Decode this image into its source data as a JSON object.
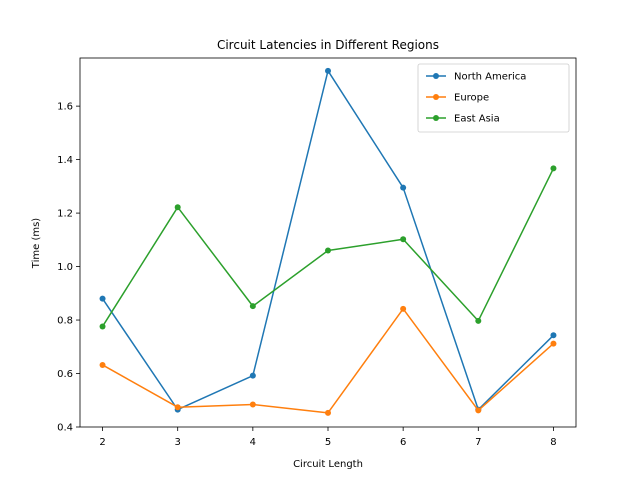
{
  "chart_data": {
    "type": "line",
    "title": "Circuit Latencies in Different Regions",
    "xlabel": "Circuit Length",
    "ylabel": "Time (ms)",
    "x": [
      2,
      3,
      4,
      5,
      6,
      7,
      8
    ],
    "xlim": [
      1.7,
      8.3
    ],
    "ylim": [
      0.4,
      1.78
    ],
    "xticks": [
      2,
      3,
      4,
      5,
      6,
      7,
      8
    ],
    "yticks": [
      0.4,
      0.6,
      0.8,
      1.0,
      1.2,
      1.4,
      1.6
    ],
    "ytick_labels": [
      "0.4",
      "0.6",
      "0.8",
      "1.0",
      "1.2",
      "1.4",
      "1.6"
    ],
    "grid": false,
    "legend_position": "top-right",
    "series": [
      {
        "name": "North America",
        "color": "#1f77b4",
        "values": [
          0.88,
          0.465,
          0.592,
          1.732,
          1.295,
          0.465,
          0.743
        ]
      },
      {
        "name": "Europe",
        "color": "#ff7f0e",
        "values": [
          0.632,
          0.474,
          0.484,
          0.453,
          0.842,
          0.462,
          0.712
        ]
      },
      {
        "name": "East Asia",
        "color": "#2ca02c",
        "values": [
          0.776,
          1.222,
          0.852,
          1.06,
          1.102,
          0.797,
          1.367
        ]
      }
    ]
  }
}
